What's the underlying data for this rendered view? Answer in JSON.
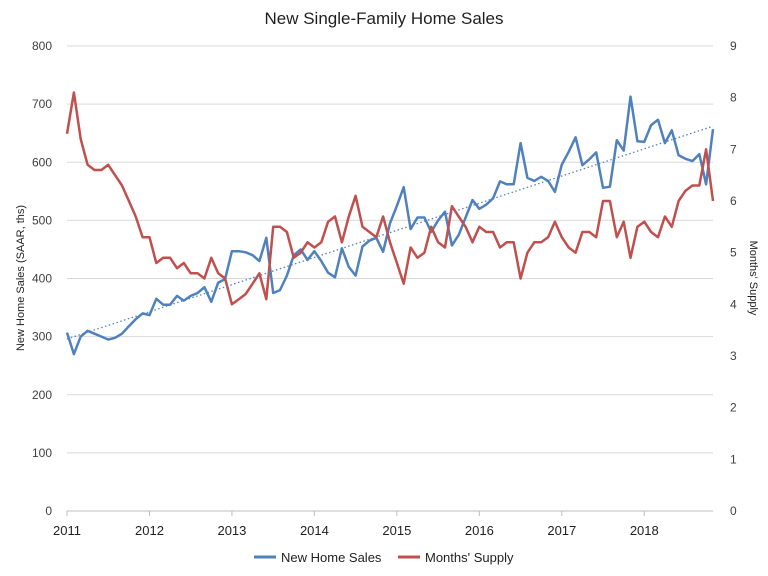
{
  "chart_data": {
    "type": "line",
    "title": "New Single-Family Home Sales",
    "xlabel": "",
    "ylabel_left": "New Home Sales (SAAR, ths)",
    "ylabel_right": "Months' Supply",
    "ylim_left": [
      0,
      800
    ],
    "ylim_right": [
      0,
      9
    ],
    "yticks_left": [
      "0",
      "100",
      "200",
      "300",
      "400",
      "500",
      "600",
      "700",
      "800"
    ],
    "yticks_right": [
      "0",
      "1",
      "2",
      "3",
      "4",
      "5",
      "6",
      "7",
      "8",
      "9"
    ],
    "x_start": "2011-01",
    "x_ticks": [
      "2011",
      "2012",
      "2013",
      "2014",
      "2015",
      "2016",
      "2017",
      "2018"
    ],
    "grid": "horizontal",
    "legend_position": "bottom",
    "series": [
      {
        "name": "New Home Sales",
        "axis": "left",
        "color": "#4f81bd",
        "values": [
          307,
          270,
          300,
          310,
          305,
          300,
          295,
          298,
          305,
          318,
          330,
          340,
          337,
          365,
          355,
          355,
          370,
          362,
          370,
          375,
          385,
          360,
          393,
          399,
          447,
          447,
          445,
          440,
          430,
          470,
          375,
          380,
          405,
          440,
          450,
          432,
          447,
          430,
          410,
          402,
          452,
          420,
          405,
          455,
          465,
          470,
          446,
          495,
          525,
          557,
          485,
          505,
          505,
          480,
          500,
          515,
          457,
          475,
          505,
          535,
          520,
          527,
          538,
          567,
          562,
          562,
          633,
          573,
          568,
          575,
          568,
          549,
          596,
          618,
          643,
          595,
          605,
          617,
          556,
          558,
          638,
          620,
          713,
          636,
          635,
          664,
          673,
          633,
          655,
          612,
          606,
          602,
          614,
          562,
          657
        ]
      },
      {
        "name": "Months' Supply",
        "axis": "right",
        "color": "#c0504d",
        "values": [
          7.3,
          8.1,
          7.2,
          6.7,
          6.6,
          6.6,
          6.7,
          6.5,
          6.3,
          6.0,
          5.7,
          5.3,
          5.3,
          4.8,
          4.9,
          4.9,
          4.7,
          4.8,
          4.6,
          4.6,
          4.5,
          4.9,
          4.6,
          4.5,
          4.0,
          4.1,
          4.2,
          4.4,
          4.6,
          4.1,
          5.5,
          5.5,
          5.4,
          4.9,
          5.0,
          5.2,
          5.1,
          5.2,
          5.6,
          5.7,
          5.2,
          5.7,
          6.1,
          5.5,
          5.4,
          5.3,
          5.7,
          5.2,
          4.8,
          4.4,
          5.1,
          4.9,
          5.0,
          5.5,
          5.2,
          5.1,
          5.9,
          5.7,
          5.5,
          5.2,
          5.5,
          5.4,
          5.4,
          5.1,
          5.2,
          5.2,
          4.5,
          5.0,
          5.2,
          5.2,
          5.3,
          5.6,
          5.3,
          5.1,
          5.0,
          5.4,
          5.4,
          5.3,
          6.0,
          6.0,
          5.3,
          5.6,
          4.9,
          5.5,
          5.6,
          5.4,
          5.3,
          5.7,
          5.5,
          6.0,
          6.2,
          6.3,
          6.3,
          7.0,
          6.0
        ]
      }
    ],
    "trendline": {
      "of_series": "New Home Sales",
      "style": "dotted",
      "color": "#4f81bd",
      "start": 296,
      "end": 662
    }
  }
}
